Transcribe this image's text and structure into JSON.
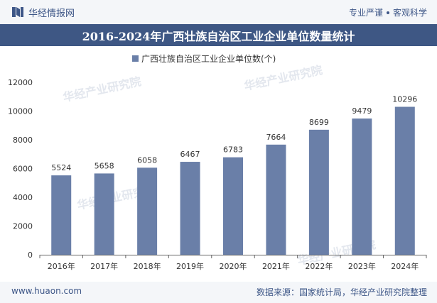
{
  "header": {
    "logo_text": "华经情报网",
    "slogan_left": "专业严谨",
    "slogan_right": "客观科学"
  },
  "footer": {
    "website": "www.huaon.com",
    "source": "数据来源：国家统计局，华经产业研究院整理"
  },
  "watermark_text": "华经产业研究院",
  "colors": {
    "bar": "#6a7fa8",
    "title_bg": "#3e5784",
    "brand": "#3d5687"
  },
  "chart_data": {
    "type": "bar",
    "title": "2016-2024年广西壮族自治区工业企业单位数量统计",
    "legend_position": "top",
    "categories": [
      "2016年",
      "2017年",
      "2018年",
      "2019年",
      "2020年",
      "2021年",
      "2022年",
      "2023年",
      "2024年"
    ],
    "series": [
      {
        "name": "广西壮族自治区工业企业单位数(个)",
        "values": [
          5524,
          5658,
          6058,
          6467,
          6783,
          7664,
          8699,
          9479,
          10296
        ]
      }
    ],
    "yticks": [
      "0",
      "2000",
      "4000",
      "6000",
      "8000",
      "10000",
      "12000"
    ],
    "ylim": [
      0,
      12000
    ],
    "grid": false
  }
}
